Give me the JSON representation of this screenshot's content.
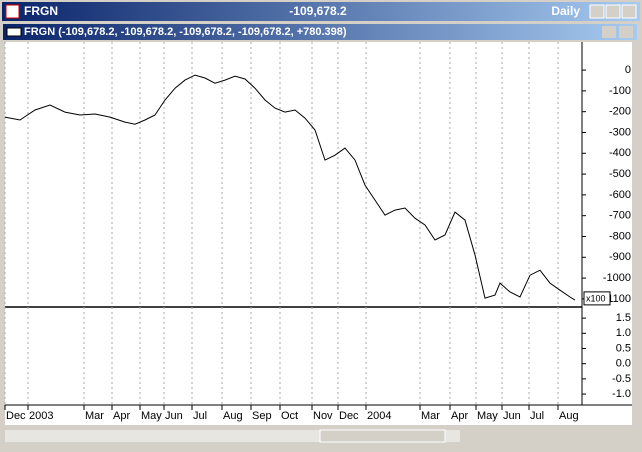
{
  "window": {
    "symbol": "FRGN",
    "last": "-109,678.2",
    "period": "Daily"
  },
  "panel": {
    "title": "FRGN (-109,678.2, -109,678.2, -109,678.2, -109,678.2, +780.398)"
  },
  "chart_data": {
    "type": "line",
    "x": [
      0,
      15,
      30,
      45,
      60,
      75,
      90,
      105,
      120,
      130,
      140,
      150,
      160,
      170,
      180,
      190,
      200,
      210,
      220,
      230,
      240,
      250,
      260,
      270,
      280,
      290,
      300,
      310,
      320,
      330,
      340,
      350,
      360,
      370,
      380,
      390,
      400,
      410,
      420,
      430,
      440,
      450,
      460,
      470,
      480,
      490,
      495,
      505,
      515,
      525,
      535,
      545,
      555,
      565,
      570
    ],
    "series": [
      {
        "color": "#000000",
        "values": [
          -226,
          -240,
          -192,
          -168,
          -202,
          -216,
          -211,
          -226,
          -250,
          -260,
          -240,
          -216,
          -144,
          -87,
          -48,
          -24,
          -38,
          -63,
          -48,
          -29,
          -43,
          -87,
          -144,
          -183,
          -202,
          -192,
          -231,
          -288,
          -433,
          -409,
          -375,
          -433,
          -553,
          -625,
          -697,
          -673,
          -663,
          -712,
          -745,
          -817,
          -793,
          -683,
          -721,
          -889,
          -1096,
          -1082,
          -1024,
          -1067,
          -1091,
          -986,
          -962,
          -1024,
          -1058,
          -1091,
          -1106
        ]
      }
    ],
    "xlim": [
      0,
      577
    ],
    "xticks": [
      {
        "value": 0,
        "label": "Dec"
      },
      {
        "value": 23,
        "label": "2003"
      },
      {
        "value": 79,
        "label": "Mar"
      },
      {
        "value": 107,
        "label": "Apr"
      },
      {
        "value": 135,
        "label": "May"
      },
      {
        "value": 159,
        "label": "Jun"
      },
      {
        "value": 187,
        "label": "Jul"
      },
      {
        "value": 217,
        "label": "Aug"
      },
      {
        "value": 246,
        "label": "Sep"
      },
      {
        "value": 275,
        "label": "Oct"
      },
      {
        "value": 307,
        "label": "Nov"
      },
      {
        "value": 333,
        "label": "Dec"
      },
      {
        "value": 361,
        "label": "2004"
      },
      {
        "value": 415,
        "label": "Mar"
      },
      {
        "value": 445,
        "label": "Apr"
      },
      {
        "value": 471,
        "label": "May"
      },
      {
        "value": 497,
        "label": "Jun"
      },
      {
        "value": 524,
        "label": "Jul"
      },
      {
        "value": 553,
        "label": "Aug"
      }
    ],
    "ylim": [
      135,
      -1139
    ],
    "yticks": [
      0,
      -100,
      -200,
      -300,
      -400,
      -500,
      -600,
      -700,
      -800,
      -900,
      -1000,
      -1100
    ],
    "scale_label": "x100",
    "y2lim": [
      1.8,
      -1.36
    ],
    "y2ticks": [
      1.5,
      {
        "value": 1,
        "label": "1.0"
      },
      0.5,
      {
        "value": 0,
        "label": "0.0"
      },
      -0.5,
      {
        "value": -1,
        "label": "-1.0"
      }
    ],
    "grid": true
  }
}
